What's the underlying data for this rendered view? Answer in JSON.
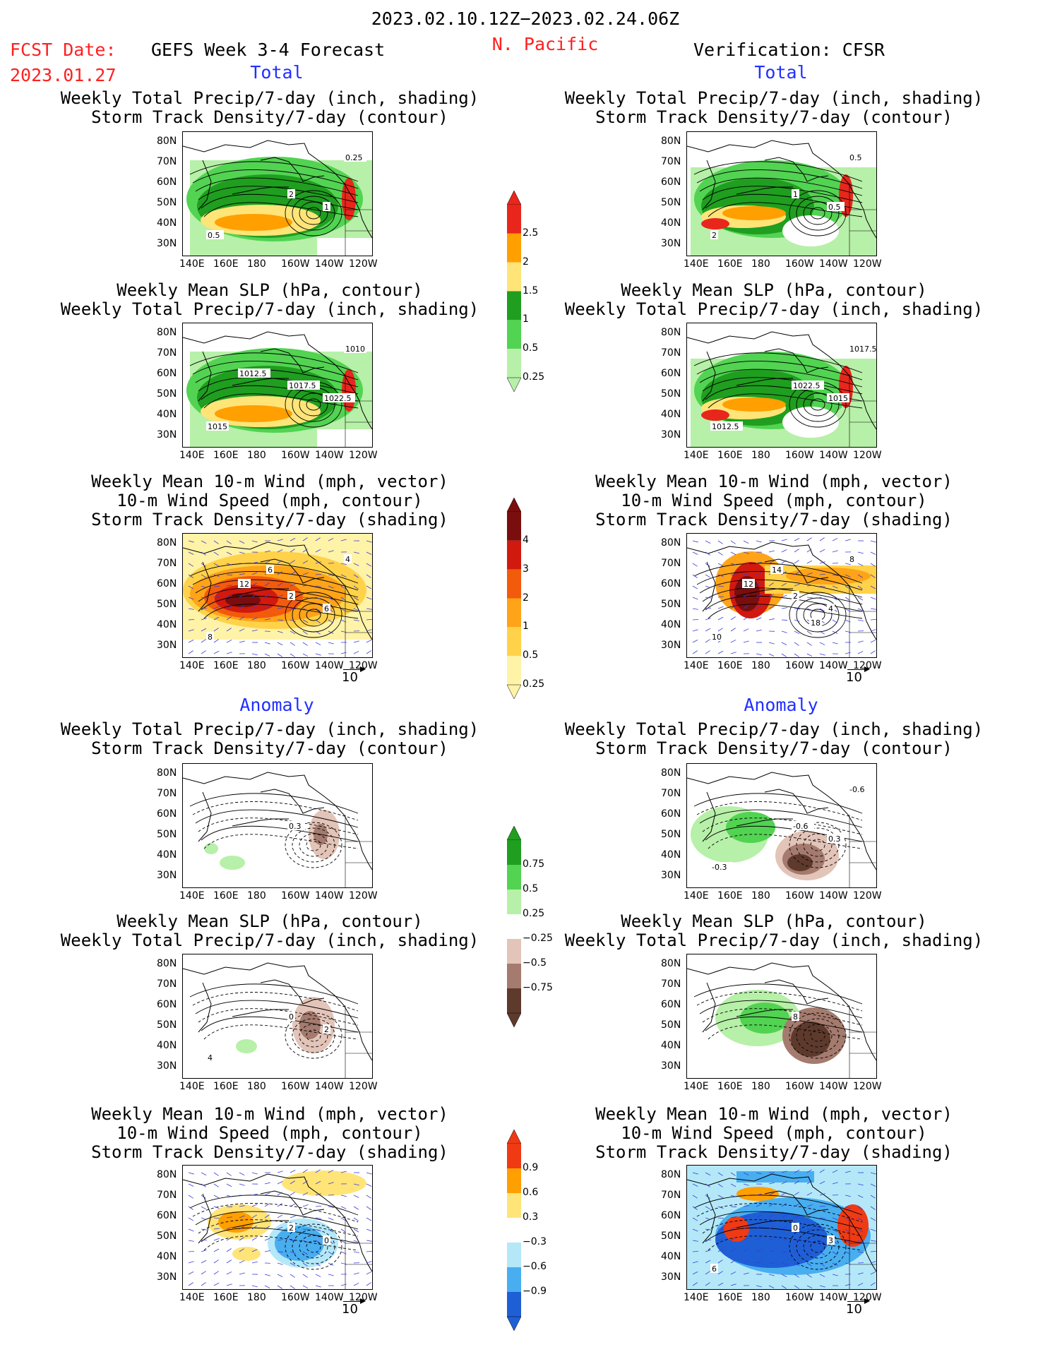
{
  "header": {
    "period": "2023.02.10.12Z−2023.02.24.06Z",
    "fcst_date_label": "FCST Date:",
    "fcst_date_value": "2023.01.27",
    "model_title": "GEFS Week 3-4 Forecast",
    "region": "N. Pacific",
    "verification": "Verification: CFSR"
  },
  "sections": {
    "total": "Total",
    "anomaly": "Anomaly"
  },
  "axes": {
    "lat": [
      "80N",
      "70N",
      "60N",
      "50N",
      "40N",
      "30N"
    ],
    "lon": [
      "140E",
      "160E",
      "180",
      "160W",
      "140W",
      "120W"
    ]
  },
  "panels": [
    {
      "id": "fc-1",
      "col": "left",
      "title": [
        "Weekly Total Precip/7-day (inch, shading)",
        "Storm Track Density/7-day (contour)"
      ],
      "style": "precip",
      "contour_labels": [
        "2",
        "1",
        "0.5",
        "0.25"
      ]
    },
    {
      "id": "fc-2",
      "col": "left",
      "title": [
        "Weekly Mean SLP (hPa, contour)",
        "Weekly Total Precip/7-day (inch, shading)"
      ],
      "style": "slp",
      "contour_labels": [
        "1017.5",
        "1022.5",
        "1015",
        "1010",
        "1012.5"
      ]
    },
    {
      "id": "fc-3",
      "col": "left",
      "title": [
        "Weekly Mean 10-m Wind (mph, vector)",
        "10-m Wind Speed (mph, contour)",
        "Storm Track Density/7-day (shading)"
      ],
      "style": "storm",
      "contour_labels": [
        "2",
        "6",
        "8",
        "4",
        "12",
        "6"
      ]
    },
    {
      "id": "fc-4",
      "col": "left",
      "title": [
        "Weekly Total Precip/7-day (inch, shading)",
        "Storm Track Density/7-day (contour)"
      ],
      "style": "anom-precip",
      "contour_labels": [
        "0.3"
      ]
    },
    {
      "id": "fc-5",
      "col": "left",
      "title": [
        "Weekly Mean SLP (hPa, contour)",
        "Weekly Total Precip/7-day (inch, shading)"
      ],
      "style": "anom-slp",
      "contour_labels": [
        "0",
        "2",
        "4"
      ]
    },
    {
      "id": "fc-6",
      "col": "left",
      "title": [
        "Weekly Mean 10-m Wind (mph, vector)",
        "10-m Wind Speed (mph, contour)",
        "Storm Track Density/7-day (shading)"
      ],
      "style": "anom-storm",
      "contour_labels": [
        "2",
        "0"
      ]
    },
    {
      "id": "vf-1",
      "col": "right",
      "title": [
        "Weekly Total Precip/7-day (inch, shading)",
        "Storm Track Density/7-day (contour)"
      ],
      "style": "precip-v",
      "contour_labels": [
        "1",
        "0.5",
        "2",
        "0.5"
      ]
    },
    {
      "id": "vf-2",
      "col": "right",
      "title": [
        "Weekly Mean SLP (hPa, contour)",
        "Weekly Total Precip/7-day (inch, shading)"
      ],
      "style": "slp-v",
      "contour_labels": [
        "1022.5",
        "1015",
        "1012.5",
        "1017.5"
      ]
    },
    {
      "id": "vf-3",
      "col": "right",
      "title": [
        "Weekly Mean 10-m Wind (mph, vector)",
        "10-m Wind Speed (mph, contour)",
        "Storm Track Density/7-day (shading)"
      ],
      "style": "storm-v",
      "contour_labels": [
        "2",
        "4",
        "10",
        "8",
        "12",
        "14",
        "18"
      ]
    },
    {
      "id": "vf-4",
      "col": "right",
      "title": [
        "Weekly Total Precip/7-day (inch, shading)",
        "Storm Track Density/7-day (contour)"
      ],
      "style": "anom-precip-v",
      "contour_labels": [
        "-0.6",
        "0.3",
        "-0.3",
        "-0.6"
      ]
    },
    {
      "id": "vf-5",
      "col": "right",
      "title": [
        "Weekly Mean SLP (hPa, contour)",
        "Weekly Total Precip/7-day (inch, shading)"
      ],
      "style": "anom-slp-v",
      "contour_labels": [
        "8"
      ]
    },
    {
      "id": "vf-6",
      "col": "right",
      "title": [
        "Weekly Mean 10-m Wind (mph, vector)",
        "10-m Wind Speed (mph, contour)",
        "Storm Track Density/7-day (shading)"
      ],
      "style": "anom-storm-v",
      "contour_labels": [
        "0",
        "3",
        "6"
      ]
    }
  ],
  "vector_reference": "10",
  "colorbars": [
    {
      "id": "precip-total",
      "labels": [
        "2.5",
        "2",
        "1.5",
        "1",
        "0.5",
        "0.25"
      ],
      "colors": [
        "#e8261c",
        "#ff9f00",
        "#ffe478",
        "#1f9e1f",
        "#52d352",
        "#b7f0a8"
      ]
    },
    {
      "id": "storm-total",
      "labels": [
        "4",
        "3",
        "2",
        "1",
        "0.5",
        "0.25"
      ],
      "colors": [
        "#7a0d0d",
        "#d1190e",
        "#f25a0c",
        "#ffa318",
        "#ffd24a",
        "#fff3a8"
      ]
    },
    {
      "id": "precip-anom",
      "labels": [
        "0.75",
        "0.5",
        "0.25",
        "−0.25",
        "−0.5",
        "−0.75"
      ],
      "colors": [
        "#1f9e1f",
        "#52d352",
        "#b7f0a8",
        "#ffffff",
        "#e3c4b8",
        "#a47b6e",
        "#5e3a2c"
      ]
    },
    {
      "id": "storm-anom",
      "labels": [
        "0.9",
        "0.6",
        "0.3",
        "−0.3",
        "−0.6",
        "−0.9"
      ],
      "colors": [
        "#ef3a14",
        "#ff9f00",
        "#ffe478",
        "#ffffff",
        "#b4e8f8",
        "#48aef0",
        "#1f5fd6"
      ]
    }
  ]
}
